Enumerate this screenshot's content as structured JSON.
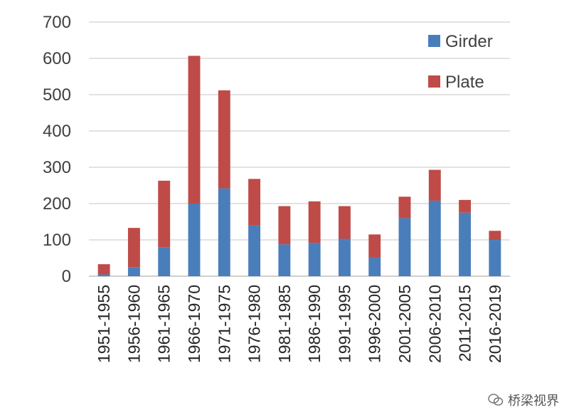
{
  "chart_data": {
    "type": "bar",
    "stacked": true,
    "categories": [
      "1951-1955",
      "1956-1960",
      "1961-1965",
      "1966-1970",
      "1971-1975",
      "1976-1980",
      "1981-1985",
      "1986-1990",
      "1991-1995",
      "1996-2000",
      "2001-2005",
      "2006-2010",
      "2011-2015",
      "2016-2019"
    ],
    "series": [
      {
        "name": "Girder",
        "color": "#4a7ebb",
        "values": [
          5,
          25,
          80,
          200,
          242,
          140,
          88,
          92,
          103,
          52,
          160,
          208,
          175,
          100
        ]
      },
      {
        "name": "Plate",
        "color": "#be4b48",
        "values": [
          28,
          108,
          183,
          407,
          270,
          128,
          105,
          114,
          90,
          63,
          59,
          85,
          35,
          25
        ]
      }
    ],
    "ylim": [
      0,
      700
    ],
    "yticks": [
      0,
      100,
      200,
      300,
      400,
      500,
      600,
      700
    ],
    "grid": true,
    "legend": "top-right"
  },
  "watermark": {
    "text": "桥梁视界"
  }
}
